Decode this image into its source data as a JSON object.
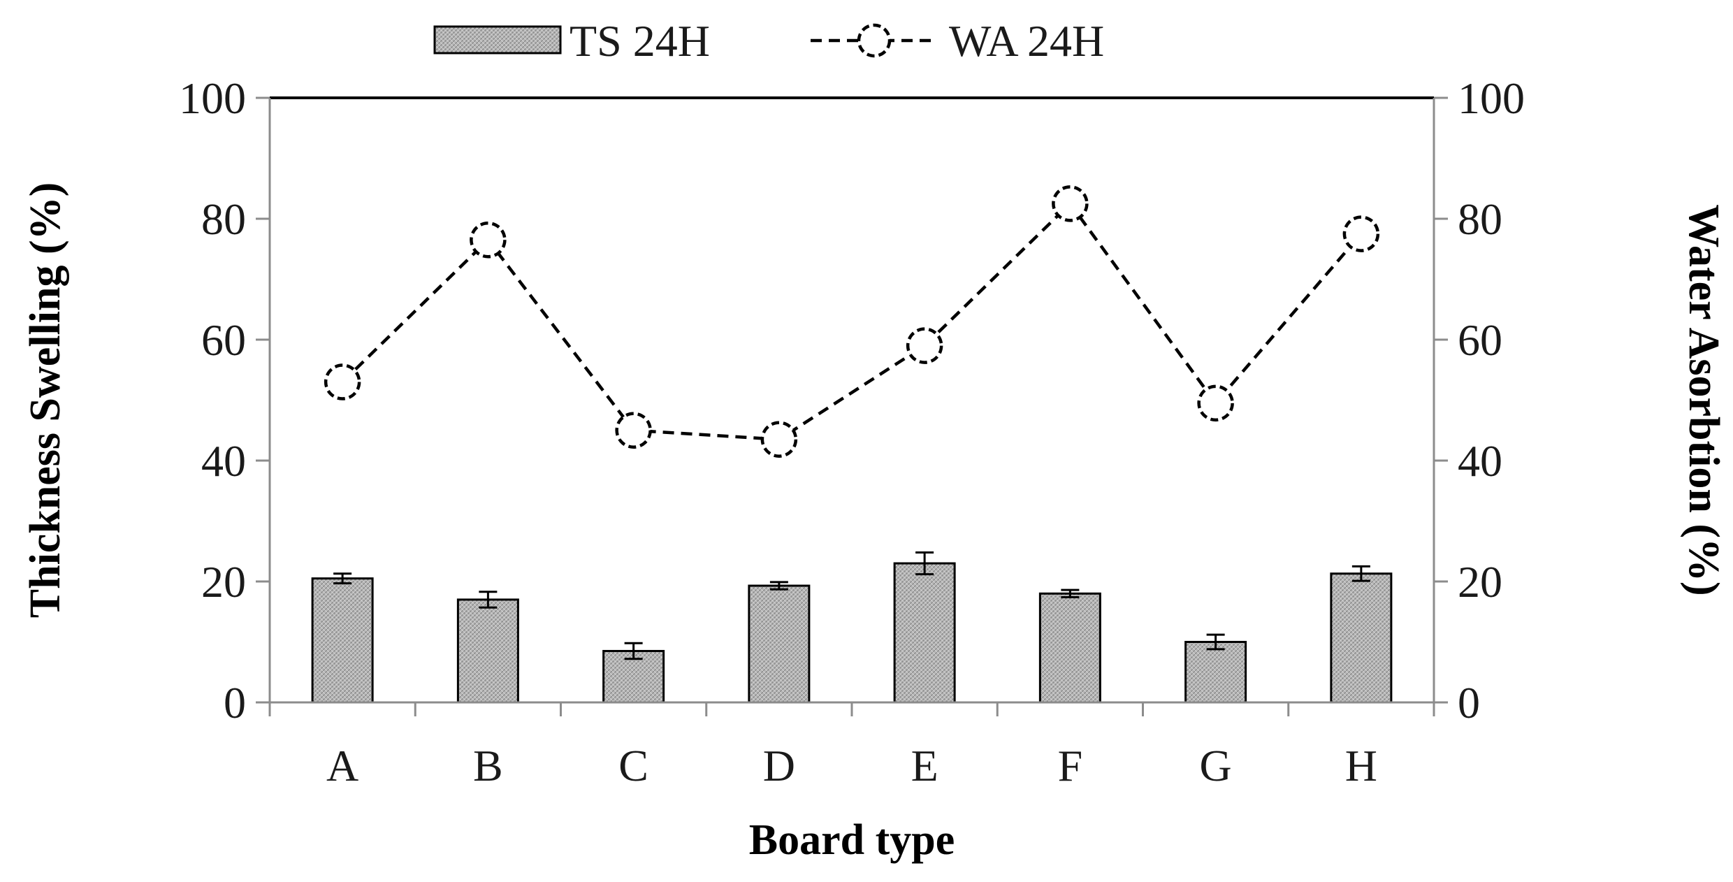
{
  "chart_data": {
    "type": "bar",
    "categories": [
      "A",
      "B",
      "C",
      "D",
      "E",
      "F",
      "G",
      "H"
    ],
    "series": [
      {
        "name": "TS 24H",
        "type": "bar",
        "axis": "left",
        "values": [
          20.5,
          17.0,
          8.5,
          19.3,
          23.0,
          18.0,
          10.0,
          21.3
        ],
        "errors": [
          0.8,
          1.3,
          1.3,
          0.6,
          1.8,
          0.6,
          1.2,
          1.2
        ]
      },
      {
        "name": "WA 24H",
        "type": "line",
        "axis": "right",
        "style": "dashed with open circle markers",
        "values": [
          53,
          76.5,
          45,
          43.5,
          59,
          82.5,
          49.5,
          77.5
        ]
      }
    ],
    "xlabel": "Board type",
    "ylabel": "Thickness Swelling (%)",
    "y2label": "Water Asorbtion (%)",
    "ylim": [
      0,
      100
    ],
    "y2lim": [
      0,
      100
    ],
    "yticks": [
      "0",
      "20",
      "40",
      "60",
      "80",
      "100"
    ],
    "y2ticks": [
      "0",
      "20",
      "40",
      "60",
      "80",
      "100"
    ],
    "grid": false,
    "legend_position": "top-center",
    "colors": {
      "bar_fill": "#b4b4b4",
      "bar_stroke": "#000000",
      "line": "#000000",
      "marker_fill": "#ffffff",
      "axis": "#8c8c8c",
      "top_border": "#000000"
    }
  }
}
